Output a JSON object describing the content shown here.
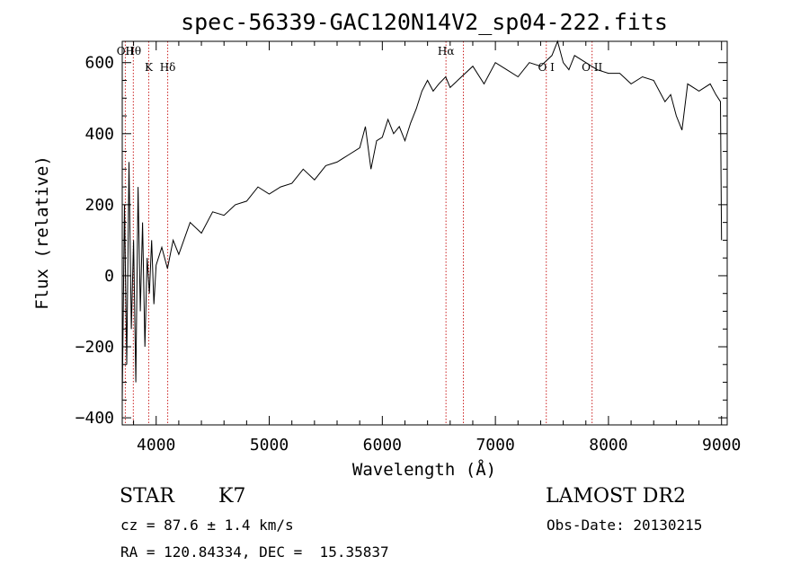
{
  "chart_data": {
    "type": "line",
    "title": "spec-56339-GAC120N14V2_sp04-222.fits",
    "xlabel": "Wavelength (Å)",
    "ylabel": "Flux (relative)",
    "xlim": [
      3700,
      9050
    ],
    "ylim": [
      -420,
      660
    ],
    "xticks": [
      4000,
      5000,
      6000,
      7000,
      8000,
      9000
    ],
    "yticks": [
      -400,
      -200,
      0,
      200,
      400,
      600
    ],
    "grid": false,
    "series": [
      {
        "x": [
          3700,
          3720,
          3740,
          3760,
          3780,
          3800,
          3820,
          3840,
          3860,
          3880,
          3900,
          3920,
          3940,
          3960,
          3980,
          4000,
          4050,
          4100,
          4150,
          4200,
          4300,
          4400,
          4500,
          4600,
          4700,
          4800,
          4900,
          5000,
          5100,
          5200,
          5300,
          5400,
          5500,
          5600,
          5700,
          5800,
          5850,
          5900,
          5950,
          6000,
          6050,
          6100,
          6150,
          6200,
          6250,
          6300,
          6350,
          6400,
          6450,
          6500,
          6560,
          6600,
          6700,
          6800,
          6900,
          7000,
          7100,
          7200,
          7300,
          7400,
          7500,
          7550,
          7600,
          7650,
          7700,
          7800,
          7900,
          8000,
          8100,
          8200,
          8300,
          8400,
          8500,
          8550,
          8600,
          8650,
          8700,
          8800,
          8900,
          8950,
          8990,
          9000
        ],
        "y": [
          -350,
          200,
          -250,
          320,
          -150,
          100,
          -300,
          250,
          -100,
          150,
          -200,
          50,
          -50,
          100,
          -80,
          30,
          80,
          20,
          100,
          60,
          150,
          120,
          180,
          170,
          200,
          210,
          250,
          230,
          250,
          260,
          300,
          270,
          310,
          320,
          340,
          360,
          420,
          300,
          380,
          390,
          440,
          400,
          420,
          380,
          430,
          470,
          520,
          550,
          520,
          540,
          560,
          530,
          560,
          590,
          540,
          600,
          580,
          560,
          600,
          590,
          620,
          680,
          600,
          580,
          620,
          600,
          580,
          570,
          570,
          540,
          560,
          550,
          490,
          510,
          450,
          410,
          540,
          520,
          540,
          510,
          490,
          100
        ]
      }
    ],
    "lines": [
      {
        "x": 3727,
        "label": "OII"
      },
      {
        "x": 3798,
        "label": "Hθ"
      },
      {
        "x": 3934,
        "label": "K"
      },
      {
        "x": 4102,
        "label": "Hδ"
      },
      {
        "x": 6563,
        "label": "Hα"
      },
      {
        "x": 6717,
        "label": ""
      },
      {
        "x": 7450,
        "label": "O I"
      },
      {
        "x": 7855,
        "label": "O II"
      }
    ]
  },
  "info": {
    "objtype": "STAR",
    "subclass": "K7",
    "survey": "LAMOST DR2",
    "cz": "cz = 87.6 ± 1.4 km/s",
    "obsdate": "Obs-Date: 20130215",
    "radec": "RA = 120.84334, DEC =  15.35837"
  },
  "colors": {
    "spectrum": "#000000",
    "line_marker": "#cc2222",
    "axis": "#000000"
  }
}
